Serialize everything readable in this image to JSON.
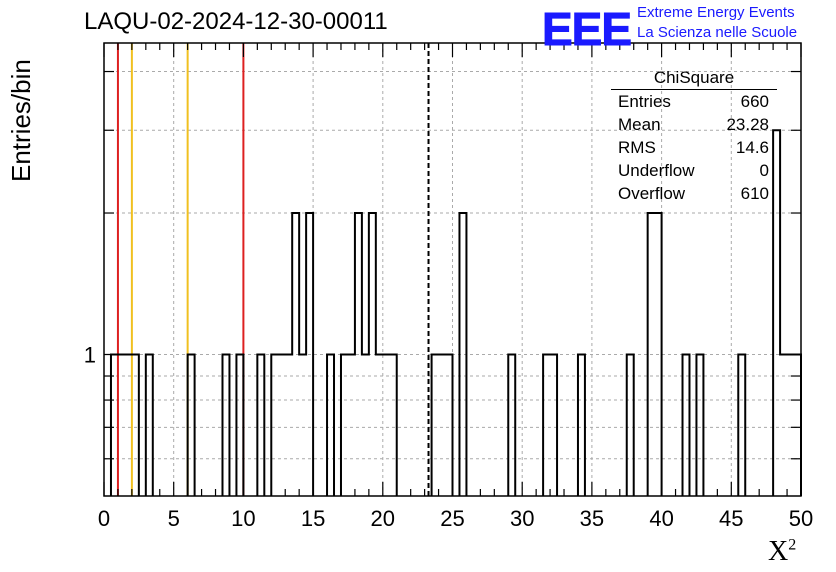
{
  "title": "LAQU-02-2024-12-30-00011",
  "logo": {
    "text": "EEE",
    "line1": "Extreme Energy Events",
    "line2": "La Scienza nelle Scuole",
    "color": "#1a1aff"
  },
  "stats": {
    "title": "ChiSquare",
    "rows": [
      {
        "label": "Entries",
        "value": "660"
      },
      {
        "label": "Mean",
        "value": "23.28"
      },
      {
        "label": "RMS",
        "value": "14.6"
      },
      {
        "label": "Underflow",
        "value": "0"
      },
      {
        "label": "Overflow",
        "value": "610"
      }
    ]
  },
  "chart_data": {
    "type": "histogram",
    "title": "LAQU-02-2024-12-30-00011",
    "xlabel": "X²",
    "ylabel": "Entries/bin",
    "xlim": [
      0,
      50
    ],
    "ylim": [
      0.5,
      4.6
    ],
    "yscale": "log",
    "grid": true,
    "bin_width": 0.5,
    "xticks": [
      0,
      5,
      10,
      15,
      20,
      25,
      30,
      35,
      40,
      45,
      50
    ],
    "yticks": [
      1
    ],
    "bins": [
      {
        "x0": 0.5,
        "x1": 1.5,
        "y": 1
      },
      {
        "x0": 1.5,
        "x1": 2.5,
        "y": 1
      },
      {
        "x0": 3.0,
        "x1": 3.5,
        "y": 1
      },
      {
        "x0": 6.0,
        "x1": 6.5,
        "y": 1
      },
      {
        "x0": 8.5,
        "x1": 9.0,
        "y": 1
      },
      {
        "x0": 9.5,
        "x1": 10.0,
        "y": 1
      },
      {
        "x0": 11.0,
        "x1": 11.5,
        "y": 1
      },
      {
        "x0": 12.0,
        "x1": 13.5,
        "y": 1
      },
      {
        "x0": 13.5,
        "x1": 14.0,
        "y": 2
      },
      {
        "x0": 14.0,
        "x1": 14.5,
        "y": 1
      },
      {
        "x0": 14.5,
        "x1": 15.0,
        "y": 2
      },
      {
        "x0": 16.0,
        "x1": 16.5,
        "y": 1
      },
      {
        "x0": 17.0,
        "x1": 17.5,
        "y": 1
      },
      {
        "x0": 17.5,
        "x1": 18.0,
        "y": 1
      },
      {
        "x0": 18.0,
        "x1": 18.5,
        "y": 2
      },
      {
        "x0": 18.5,
        "x1": 19.0,
        "y": 1
      },
      {
        "x0": 19.0,
        "x1": 19.5,
        "y": 2
      },
      {
        "x0": 19.5,
        "x1": 21.0,
        "y": 1
      },
      {
        "x0": 23.5,
        "x1": 25.0,
        "y": 1
      },
      {
        "x0": 25.5,
        "x1": 26.0,
        "y": 2
      },
      {
        "x0": 29.0,
        "x1": 29.5,
        "y": 1
      },
      {
        "x0": 31.5,
        "x1": 32.5,
        "y": 1
      },
      {
        "x0": 34.0,
        "x1": 34.5,
        "y": 1
      },
      {
        "x0": 37.5,
        "x1": 38.0,
        "y": 1
      },
      {
        "x0": 39.0,
        "x1": 40.0,
        "y": 2
      },
      {
        "x0": 41.5,
        "x1": 42.0,
        "y": 1
      },
      {
        "x0": 42.5,
        "x1": 43.0,
        "y": 1
      },
      {
        "x0": 45.5,
        "x1": 46.0,
        "y": 1
      },
      {
        "x0": 48.0,
        "x1": 48.5,
        "y": 3
      },
      {
        "x0": 48.5,
        "x1": 49.0,
        "y": 1
      },
      {
        "x0": 49.0,
        "x1": 50.0,
        "y": 1
      }
    ],
    "reference_lines": [
      {
        "x": 1,
        "color": "#dd2020",
        "style": "solid"
      },
      {
        "x": 2,
        "color": "#f0c020",
        "style": "solid"
      },
      {
        "x": 6,
        "color": "#f0c020",
        "style": "solid"
      },
      {
        "x": 10,
        "color": "#dd2020",
        "style": "solid"
      },
      {
        "x": 23.28,
        "color": "#000000",
        "style": "dashed"
      }
    ]
  }
}
